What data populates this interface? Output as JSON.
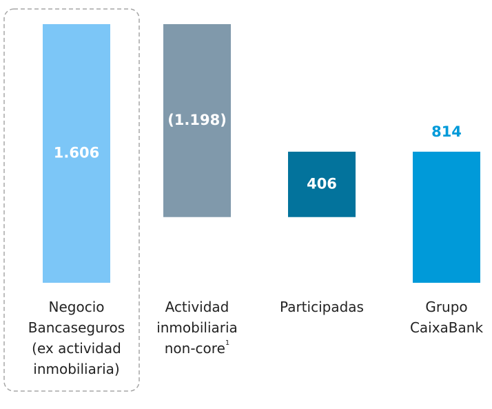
{
  "chart_data": {
    "type": "waterfall",
    "categories": [
      [
        "Negocio",
        "Bancaseguros",
        "(ex actividad",
        "inmobiliaria)"
      ],
      [
        "Actividad",
        "inmobiliaria",
        "non-core"
      ],
      [
        "Participadas"
      ],
      [
        "Grupo",
        "CaixaBank"
      ]
    ],
    "category_notes": [
      null,
      "1",
      null,
      null
    ],
    "values": [
      1606,
      -1198,
      406,
      814
    ],
    "value_labels": [
      "1.606",
      "(1.198)",
      "406",
      "814"
    ],
    "colors": [
      "#7cc6f7",
      "#8099ab",
      "#03739c",
      "#009ad9"
    ],
    "totals": [
      false,
      false,
      false,
      true
    ]
  }
}
